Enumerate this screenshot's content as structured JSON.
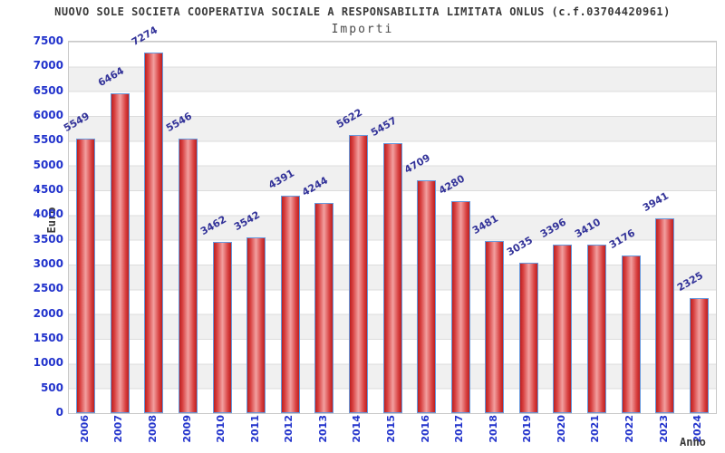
{
  "chart_data": {
    "type": "bar",
    "title": "NUOVO SOLE SOCIETA COOPERATIVA SOCIALE A RESPONSABILITA LIMITATA ONLUS (c.f.03704420961)",
    "subtitle": "Importi",
    "xlabel": "Anno",
    "ylabel": "Euro",
    "categories": [
      "2006",
      "2007",
      "2008",
      "2009",
      "2010",
      "2011",
      "2012",
      "2013",
      "2014",
      "2015",
      "2016",
      "2017",
      "2018",
      "2019",
      "2020",
      "2021",
      "2022",
      "2023",
      "2024"
    ],
    "values": [
      5549,
      6464,
      7274,
      5546,
      3462,
      3542,
      4391,
      4244,
      5622,
      5457,
      4709,
      4280,
      3481,
      3035,
      3396,
      3410,
      3176,
      3941,
      2325
    ],
    "ylim": [
      0,
      7500
    ],
    "ytick_step": 500,
    "grid": "horizontal gridlines with alternating white/gray bands",
    "legend": "none",
    "value_labels": "above bars, rotated"
  },
  "colors": {
    "bar_fill_edge": "#bb2020",
    "bar_fill_center": "#f2a0a0",
    "bar_border": "#6699dd",
    "axis_tick_text": "#2233cc",
    "value_label_text": "#333399",
    "title_text": "#3a3a3a",
    "subtitle_text": "#4a4a4a",
    "axis_name_text": "#3a3a3a",
    "band_gray": "#f0f0f0",
    "grid_line": "#dcdcdc",
    "plot_border": "#c8c8c8",
    "background": "#ffffff"
  }
}
